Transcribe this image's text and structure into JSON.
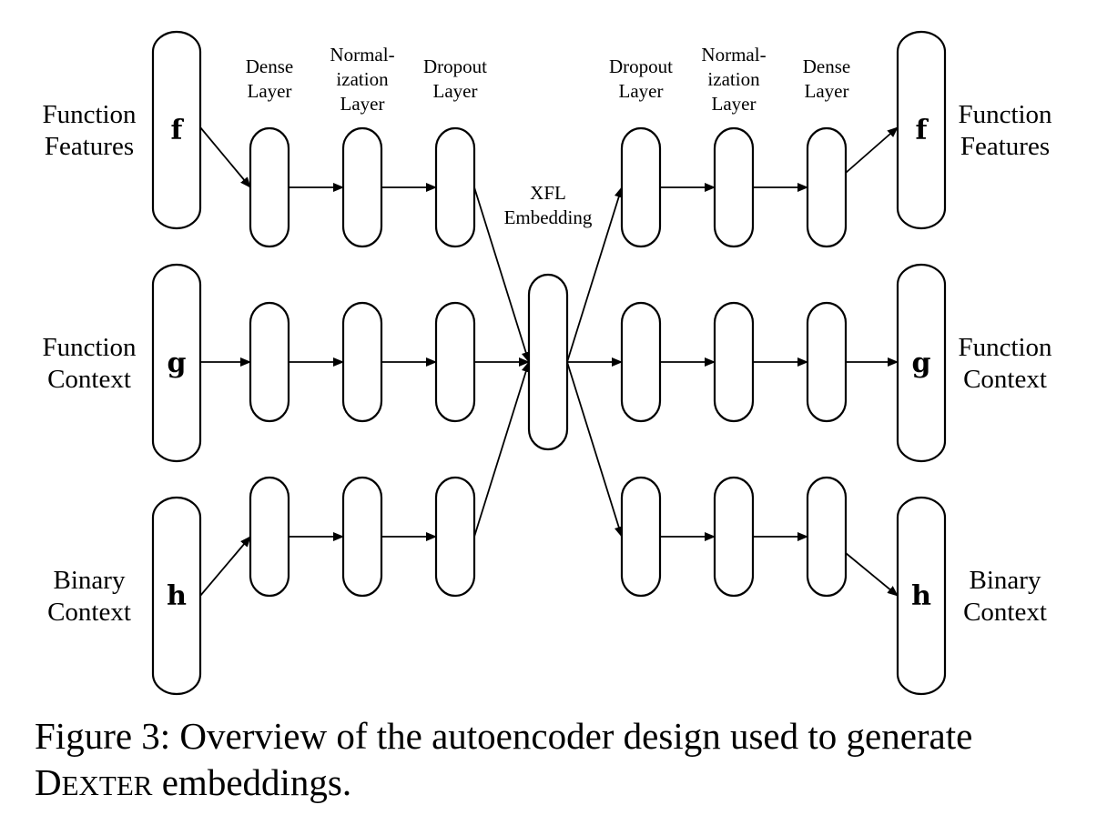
{
  "diagram": {
    "inputs": [
      {
        "var": "f",
        "label": [
          "Function",
          "Features"
        ]
      },
      {
        "var": "g",
        "label": [
          "Function",
          "Context"
        ]
      },
      {
        "var": "h",
        "label": [
          "Binary",
          "Context"
        ]
      }
    ],
    "outputs": [
      {
        "var": "f",
        "label": [
          "Function",
          "Features"
        ]
      },
      {
        "var": "g",
        "label": [
          "Function",
          "Context"
        ]
      },
      {
        "var": "h",
        "label": [
          "Binary",
          "Context"
        ]
      }
    ],
    "encoder_layer_labels": [
      [
        "Dense",
        "Layer"
      ],
      [
        "Normal-",
        "ization",
        "Layer"
      ],
      [
        "Dropout",
        "Layer"
      ]
    ],
    "decoder_layer_labels": [
      [
        "Dropout",
        "Layer"
      ],
      [
        "Normal-",
        "ization",
        "Layer"
      ],
      [
        "Dense",
        "Layer"
      ]
    ],
    "center_label": [
      "XFL",
      "Embedding"
    ]
  },
  "caption": {
    "prefix": "Figure 3: Overview of the autoencoder design used to generate",
    "name_initial": "D",
    "name_rest": "EXTER",
    "suffix": " embeddings."
  }
}
